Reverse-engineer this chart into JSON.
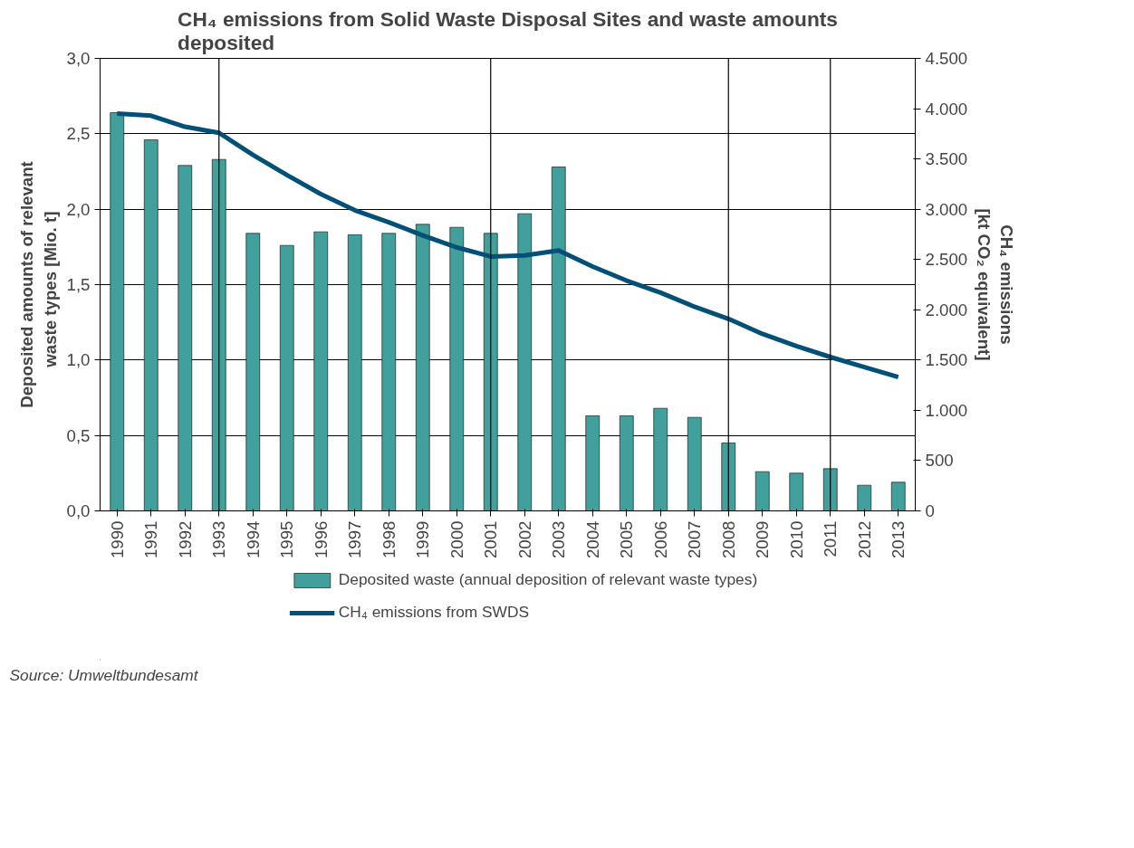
{
  "chart_data": {
    "type": "bar",
    "title": "CH₄ emissions from Solid Waste Disposal Sites and waste amounts\ndeposited",
    "ylabel": "Deposited amounts of relevant\nwaste types   [Mio. t]",
    "y2label": "CH₄ emissions\n[kt CO₂ equivalent]",
    "categories": [
      "1990",
      "1991",
      "1992",
      "1993",
      "1994",
      "1995",
      "1996",
      "1997",
      "1998",
      "1999",
      "2000",
      "2001",
      "2002",
      "2003",
      "2004",
      "2005",
      "2006",
      "2007",
      "2008",
      "2009",
      "2010",
      "2011",
      "2012",
      "2013"
    ],
    "series": [
      {
        "name": "Deposited waste (annual deposition of relevant waste types)",
        "color": "#41a09c",
        "values": [
          2.64,
          2.46,
          2.29,
          2.33,
          1.84,
          1.76,
          1.85,
          1.83,
          1.84,
          1.9,
          1.88,
          1.84,
          1.97,
          2.28,
          0.63,
          0.63,
          0.68,
          0.62,
          0.45,
          0.26,
          0.25,
          0.28,
          0.17,
          0.19
        ]
      },
      {
        "name": "CH₄ emissions from SWDS",
        "type": "line",
        "axis": "y2",
        "color": "#005077",
        "values": [
          3950,
          3930,
          3820,
          3760,
          3540,
          3340,
          3150,
          2990,
          2870,
          2740,
          2620,
          2530,
          2540,
          2590,
          2430,
          2290,
          2170,
          2030,
          1910,
          1760,
          1640,
          1530,
          1430,
          1330
        ]
      }
    ],
    "ylim": [
      0,
      3
    ],
    "yticks": [
      {
        "value": 0,
        "label": "0,0"
      },
      {
        "value": 0.5,
        "label": "0,5"
      },
      {
        "value": 1,
        "label": "1,0"
      },
      {
        "value": 1.5,
        "label": "1,5"
      },
      {
        "value": 2,
        "label": "2,0"
      },
      {
        "value": 2.5,
        "label": "2,5"
      },
      {
        "value": 3,
        "label": "3,0"
      }
    ],
    "y2lim": [
      0,
      4500
    ],
    "y2ticks": [
      0,
      500,
      {
        "value": 1000,
        "label": "1.000"
      },
      {
        "value": 1500,
        "label": "1.500"
      },
      {
        "value": 2000,
        "label": "2.000"
      },
      {
        "value": 2500,
        "label": "2.500"
      },
      {
        "value": 3000,
        "label": "3.000"
      },
      {
        "value": 3500,
        "label": "3.500"
      },
      {
        "value": 4000,
        "label": "4.000"
      },
      {
        "value": 4500,
        "label": "4.500"
      }
    ],
    "ref_lines": [
      {
        "axis": "x",
        "value": "1993",
        "label": null
      },
      {
        "axis": "x",
        "value": "2001",
        "label": null
      },
      {
        "axis": "x",
        "value": "2008",
        "label": null
      },
      {
        "axis": "x",
        "value": "2011",
        "label": null
      }
    ],
    "grid": "y",
    "legend": "bottom",
    "annotations": [
      "Source: Umweltbundesamt"
    ]
  }
}
